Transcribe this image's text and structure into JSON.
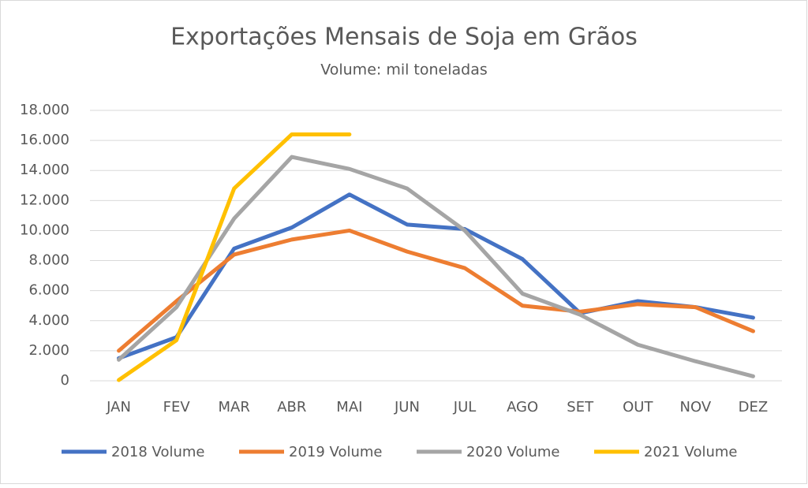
{
  "chart_data": {
    "type": "line",
    "title": "Exportações Mensais de Soja em Grãos",
    "subtitle": "Volume: mil toneladas",
    "categories": [
      "JAN",
      "FEV",
      "MAR",
      "ABR",
      "MAI",
      "JUN",
      "JUL",
      "AGO",
      "SET",
      "OUT",
      "NOV",
      "DEZ"
    ],
    "series": [
      {
        "name": "2018 Volume",
        "color": "#4472c4",
        "values": [
          1500,
          2900,
          8800,
          10200,
          12400,
          10400,
          10100,
          8100,
          4500,
          5300,
          4900,
          4200
        ]
      },
      {
        "name": "2019 Volume",
        "color": "#ed7d31",
        "values": [
          2000,
          5300,
          8400,
          9400,
          10000,
          8600,
          7500,
          5000,
          4600,
          5100,
          4900,
          3300
        ]
      },
      {
        "name": "2020 Volume",
        "color": "#a5a5a5",
        "values": [
          1400,
          4900,
          10800,
          14900,
          14100,
          12800,
          10000,
          5800,
          4400,
          2400,
          1300,
          300
        ]
      },
      {
        "name": "2021 Volume",
        "color": "#ffc000",
        "values": [
          50,
          2700,
          12800,
          16400,
          16400,
          null,
          null,
          null,
          null,
          null,
          null,
          null
        ]
      }
    ],
    "ylim": [
      0,
      18000
    ],
    "yticks": [
      0,
      {
        "value": 2000,
        "label": "2.000"
      },
      {
        "value": 4000,
        "label": "4.000"
      },
      {
        "value": 6000,
        "label": "6.000"
      },
      {
        "value": 8000,
        "label": "8.000"
      },
      {
        "value": 10000,
        "label": "10.000"
      },
      {
        "value": 12000,
        "label": "12.000"
      },
      {
        "value": 14000,
        "label": "14.000"
      },
      {
        "value": 16000,
        "label": "16.000"
      },
      {
        "value": 18000,
        "label": "18.000"
      }
    ],
    "grid": true,
    "legend": "bottom"
  }
}
